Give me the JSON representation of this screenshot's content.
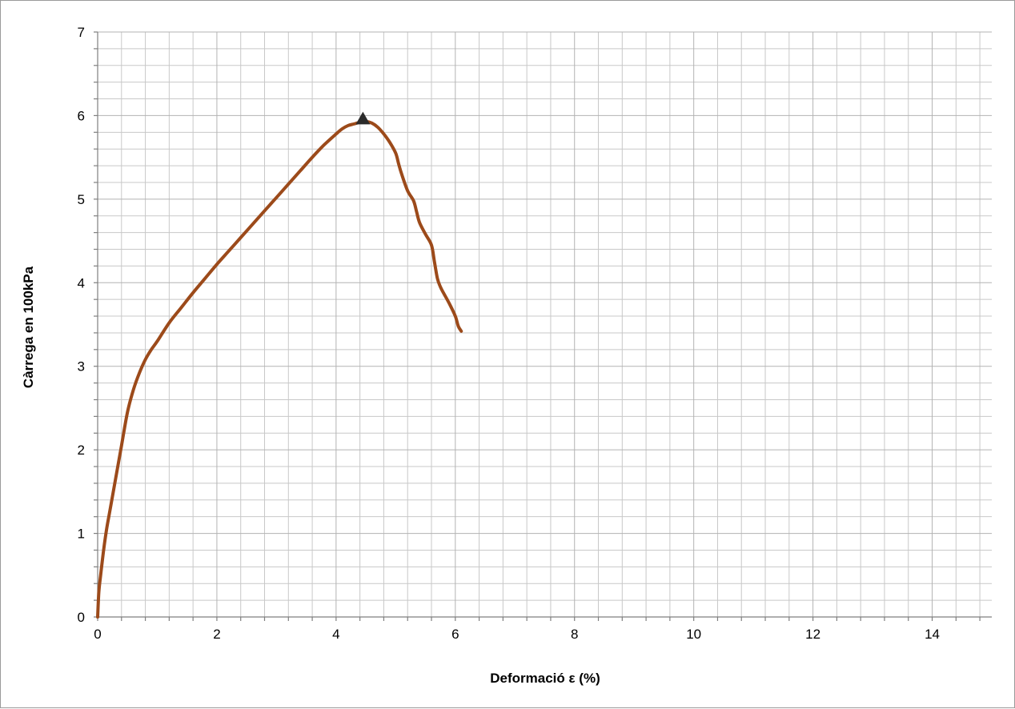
{
  "chart_data": {
    "type": "line",
    "title": "",
    "xlabel": "Deformació ε (%)",
    "ylabel": "Càrrega en 100kPa",
    "xlim": [
      0,
      15
    ],
    "ylim": [
      0,
      7
    ],
    "x_major_step": 2,
    "x_minor_step": 0.4,
    "y_major_step": 1,
    "y_minor_step": 0.2,
    "grid": true,
    "x_tick_labels": [
      "0",
      "2",
      "4",
      "6",
      "8",
      "10",
      "12",
      "14"
    ],
    "y_tick_labels": [
      "0",
      "1",
      "2",
      "3",
      "4",
      "5",
      "6",
      "7"
    ],
    "series": [
      {
        "color": "#9c4a1a",
        "x": [
          0,
          0.02,
          0.05,
          0.1,
          0.15,
          0.2,
          0.3,
          0.4,
          0.5,
          0.6,
          0.7,
          0.8,
          0.9,
          1.0,
          1.2,
          1.4,
          1.6,
          1.8,
          2.0,
          2.2,
          2.4,
          2.6,
          2.8,
          3.0,
          3.2,
          3.4,
          3.6,
          3.8,
          4.0,
          4.1,
          4.2,
          4.3,
          4.4,
          4.5,
          4.6,
          4.7,
          4.8,
          4.9,
          5.0,
          5.05,
          5.1,
          5.2,
          5.3,
          5.35,
          5.4,
          5.5,
          5.6,
          5.65,
          5.7,
          5.75,
          5.8,
          5.9,
          6.0,
          6.05,
          6.1
        ],
        "y": [
          0,
          0.3,
          0.5,
          0.8,
          1.05,
          1.25,
          1.65,
          2.05,
          2.45,
          2.72,
          2.92,
          3.08,
          3.2,
          3.3,
          3.52,
          3.7,
          3.88,
          4.05,
          4.22,
          4.38,
          4.54,
          4.7,
          4.86,
          5.02,
          5.18,
          5.34,
          5.5,
          5.65,
          5.78,
          5.84,
          5.88,
          5.9,
          5.92,
          5.93,
          5.91,
          5.86,
          5.78,
          5.68,
          5.55,
          5.42,
          5.3,
          5.1,
          4.98,
          4.85,
          4.72,
          4.58,
          4.45,
          4.25,
          4.05,
          3.95,
          3.88,
          3.75,
          3.6,
          3.48,
          3.42
        ]
      }
    ],
    "annotations": [
      {
        "type": "marker",
        "shape": "triangle",
        "x": 4.45,
        "y": 5.96,
        "color": "#2b2b2b"
      }
    ]
  }
}
